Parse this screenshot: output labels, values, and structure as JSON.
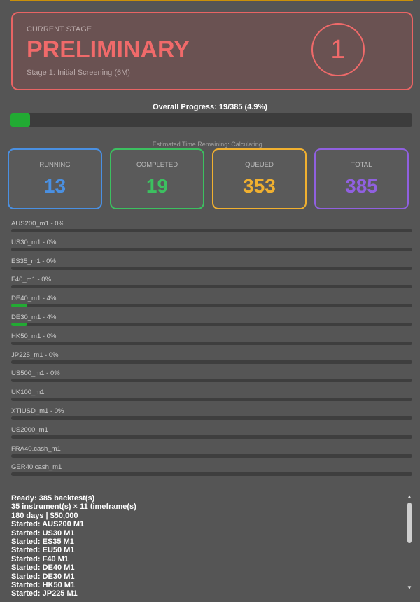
{
  "stage": {
    "kicker": "CURRENT STAGE",
    "name": "PRELIMINARY",
    "description": "Stage 1: Initial Screening (6M)",
    "number": "1"
  },
  "overall_progress": {
    "label": "Overall Progress: 19/385 (4.9%)",
    "value": 4.9
  },
  "eta": "Estimated Time Remaining: Calculating...",
  "stats": [
    {
      "label": "RUNNING",
      "value": "13",
      "color": "#4a90e2"
    },
    {
      "label": "COMPLETED",
      "value": "19",
      "color": "#3cc060"
    },
    {
      "label": "QUEUED",
      "value": "353",
      "color": "#f0b030"
    },
    {
      "label": "TOTAL",
      "value": "385",
      "color": "#9060e0"
    }
  ],
  "instruments": [
    {
      "label": "AUS200_m1 - 0%",
      "progress": 0
    },
    {
      "label": "US30_m1 - 0%",
      "progress": 0
    },
    {
      "label": "ES35_m1 - 0%",
      "progress": 0
    },
    {
      "label": "F40_m1 - 0%",
      "progress": 0
    },
    {
      "label": "DE40_m1 - 4%",
      "progress": 4
    },
    {
      "label": "DE30_m1 - 4%",
      "progress": 4
    },
    {
      "label": "HK50_m1 - 0%",
      "progress": 0
    },
    {
      "label": "JP225_m1 - 0%",
      "progress": 0
    },
    {
      "label": "US500_m1 - 0%",
      "progress": 0
    },
    {
      "label": "UK100_m1",
      "progress": null
    },
    {
      "label": "XTIUSD_m1 - 0%",
      "progress": 0
    },
    {
      "label": "US2000_m1",
      "progress": null
    },
    {
      "label": "FRA40.cash_m1",
      "progress": null
    },
    {
      "label": "GER40.cash_m1",
      "progress": null
    }
  ],
  "log": [
    "Ready: 385 backtest(s)",
    "35 instrument(s) × 11 timeframe(s)",
    "180 days | $50,000",
    "Started: AUS200 M1",
    "Started: US30 M1",
    "Started: ES35 M1",
    "Started: EU50 M1",
    "Started: F40 M1",
    "Started: DE40 M1",
    "Started: DE30 M1",
    "Started: HK50 M1",
    "Started: JP225 M1"
  ]
}
